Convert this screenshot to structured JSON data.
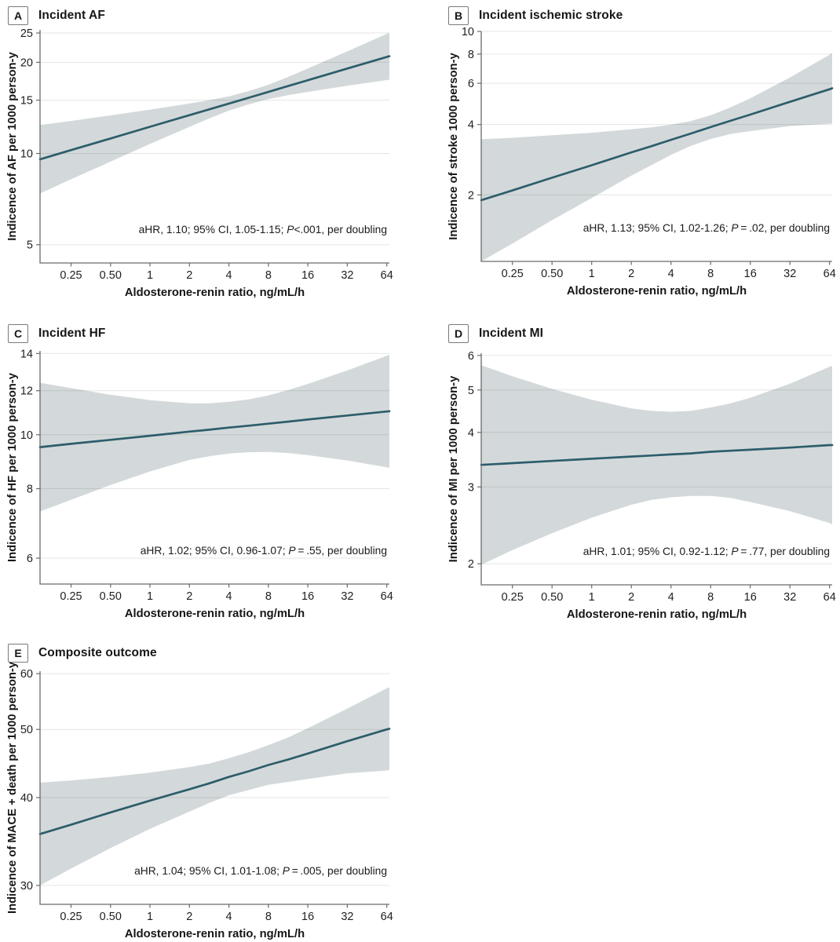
{
  "figure": {
    "background": "#ffffff",
    "colors": {
      "trend_line": "#2d5d6b",
      "ci_band": "#d3d9da",
      "gridline": "rgba(0,0,0,0.10)",
      "axis": "#6a6a6a",
      "text": "#1f1f1f"
    }
  },
  "chart_data": [
    {
      "type": "line",
      "panel_label": "A",
      "title": "Incident AF",
      "xlabel": "Aldosterone-renin ratio, ng/mL/h",
      "ylabel": "Indicence of AF per 1000 person-y",
      "annotation": {
        "pre": "aHR, 1.10; 95% CI, 1.05-1.15; ",
        "p": "P",
        "post": "<.001, per doubling"
      },
      "xscale": "log2",
      "yscale": "log10",
      "xlim": [
        0.145,
        67
      ],
      "ylim": [
        4.35,
        25.6
      ],
      "xticks": {
        "values": [
          0.25,
          0.5,
          1,
          2,
          4,
          8,
          16,
          32,
          64
        ],
        "labels": [
          "0.25",
          "0.50",
          "1",
          "2",
          "4",
          "8",
          "16",
          "32",
          "64"
        ]
      },
      "yticks": [
        5,
        10,
        15,
        20,
        25
      ],
      "x": [
        0.145,
        0.25,
        0.5,
        1,
        2,
        2.83,
        4,
        5.66,
        8,
        11.31,
        16,
        32,
        64,
        67
      ],
      "series": [
        {
          "name": "Adjusted incidence (fitted)",
          "values": [
            9.57,
            10.26,
            11.21,
            12.25,
            13.38,
            13.99,
            14.62,
            15.28,
            15.97,
            16.7,
            17.45,
            19.07,
            20.83,
            20.95
          ]
        },
        {
          "name": "95% CI lower",
          "values": [
            7.38,
            8.22,
            9.4,
            10.75,
            12.24,
            13.05,
            13.85,
            14.52,
            15.12,
            15.58,
            15.97,
            16.73,
            17.47,
            17.52
          ]
        },
        {
          "name": "95% CI upper",
          "values": [
            12.41,
            12.8,
            13.36,
            13.96,
            14.62,
            15.0,
            15.44,
            16.07,
            16.86,
            17.9,
            19.07,
            21.74,
            24.83,
            25.06
          ]
        }
      ]
    },
    {
      "type": "line",
      "panel_label": "B",
      "title": "Incident ischemic stroke",
      "xlabel": "Aldosterone-renin ratio, ng/mL/h",
      "ylabel": "Indicence of stroke 1000 person-y",
      "annotation": {
        "pre": "aHR, 1.13; 95% CI, 1.02-1.26; ",
        "p": "P",
        "post": " = .02, per doubling"
      },
      "xscale": "log2",
      "yscale": "log10",
      "xlim": [
        0.145,
        67
      ],
      "ylim": [
        1.04,
        10.0
      ],
      "xticks": {
        "values": [
          0.25,
          0.5,
          1,
          2,
          4,
          8,
          16,
          32,
          64
        ],
        "labels": [
          "0.25",
          "0.50",
          "1",
          "2",
          "4",
          "8",
          "16",
          "32",
          "64"
        ]
      },
      "yticks": [
        2,
        4,
        6,
        8,
        10
      ],
      "x": [
        0.145,
        0.25,
        0.5,
        1,
        2,
        2.83,
        4,
        5.66,
        8,
        11.31,
        16,
        32,
        64,
        67
      ],
      "series": [
        {
          "name": "Adjusted incidence (fitted)",
          "values": [
            1.9,
            2.09,
            2.37,
            2.68,
            3.04,
            3.23,
            3.44,
            3.66,
            3.9,
            4.15,
            4.41,
            5.0,
            5.66,
            5.71
          ]
        },
        {
          "name": "95% CI lower",
          "values": [
            1.04,
            1.24,
            1.56,
            1.94,
            2.42,
            2.68,
            2.97,
            3.24,
            3.47,
            3.64,
            3.75,
            3.94,
            4.03,
            4.04
          ]
        },
        {
          "name": "95% CI upper",
          "values": [
            3.46,
            3.51,
            3.6,
            3.69,
            3.82,
            3.89,
            3.99,
            4.14,
            4.38,
            4.73,
            5.18,
            6.35,
            7.95,
            8.08
          ]
        }
      ]
    },
    {
      "type": "line",
      "panel_label": "C",
      "title": "Incident HF",
      "xlabel": "Aldosterone-renin ratio, ng/mL/h",
      "ylabel": "Indicence of HF per 1000 person-y",
      "annotation": {
        "pre": "aHR, 1.02; 95% CI, 0.96-1.07; ",
        "p": "P",
        "post": " = .55, per doubling"
      },
      "xscale": "log2",
      "yscale": "log10",
      "xlim": [
        0.145,
        67
      ],
      "ylim": [
        5.39,
        14.15
      ],
      "xticks": {
        "values": [
          0.25,
          0.5,
          1,
          2,
          4,
          8,
          16,
          32,
          64
        ],
        "labels": [
          "0.25",
          "0.50",
          "1",
          "2",
          "4",
          "8",
          "16",
          "32",
          "64"
        ]
      },
      "yticks": [
        6,
        8,
        10,
        12,
        14
      ],
      "x": [
        0.145,
        0.25,
        0.5,
        1,
        2,
        2.83,
        4,
        5.66,
        8,
        11.31,
        16,
        32,
        64,
        67
      ],
      "series": [
        {
          "name": "Adjusted incidence (fitted)",
          "values": [
            9.5,
            9.63,
            9.79,
            9.96,
            10.13,
            10.21,
            10.3,
            10.38,
            10.47,
            10.56,
            10.65,
            10.83,
            11.01,
            11.02
          ]
        },
        {
          "name": "95% CI lower",
          "values": [
            7.28,
            7.64,
            8.12,
            8.59,
            9.01,
            9.15,
            9.25,
            9.3,
            9.31,
            9.27,
            9.19,
            8.99,
            8.74,
            8.72
          ]
        },
        {
          "name": "95% CI upper",
          "values": [
            12.4,
            12.13,
            11.8,
            11.54,
            11.39,
            11.39,
            11.46,
            11.58,
            11.77,
            12.03,
            12.34,
            13.05,
            13.87,
            13.93
          ]
        }
      ]
    },
    {
      "type": "line",
      "panel_label": "D",
      "title": "Incident MI",
      "xlabel": "Aldosterone-renin ratio, ng/mL/h",
      "ylabel": "Indicence of MI per 1000 person-y",
      "annotation": {
        "pre": "aHR, 1.01; 95% CI, 0.92-1.12; ",
        "p": "P",
        "post": " = .77, per doubling"
      },
      "xscale": "log2",
      "yscale": "log10",
      "xlim": [
        0.145,
        67
      ],
      "ylim": [
        1.79,
        6.07
      ],
      "xticks": {
        "values": [
          0.25,
          0.5,
          1,
          2,
          4,
          8,
          16,
          32,
          64
        ],
        "labels": [
          "0.25",
          "0.50",
          "1",
          "2",
          "4",
          "8",
          "16",
          "32",
          "64"
        ]
      },
      "yticks": [
        2,
        3,
        4,
        5,
        6
      ],
      "x": [
        0.145,
        0.25,
        0.5,
        1,
        2,
        2.83,
        4,
        5.66,
        8,
        11.31,
        16,
        32,
        64,
        67
      ],
      "series": [
        {
          "name": "Adjusted incidence (fitted)",
          "values": [
            3.37,
            3.4,
            3.44,
            3.48,
            3.52,
            3.54,
            3.56,
            3.58,
            3.61,
            3.63,
            3.65,
            3.69,
            3.74,
            3.74
          ]
        },
        {
          "name": "95% CI lower",
          "values": [
            1.99,
            2.15,
            2.35,
            2.55,
            2.73,
            2.8,
            2.84,
            2.86,
            2.86,
            2.83,
            2.77,
            2.64,
            2.48,
            2.46
          ]
        },
        {
          "name": "95% CI upper",
          "values": [
            5.7,
            5.38,
            5.03,
            4.75,
            4.54,
            4.48,
            4.46,
            4.48,
            4.56,
            4.66,
            4.8,
            5.17,
            5.65,
            5.68
          ]
        }
      ]
    },
    {
      "type": "line",
      "panel_label": "E",
      "title": "Composite outcome",
      "xlabel": "Aldosterone-renin ratio, ng/mL/h",
      "ylabel": "Indicence of MACE + death per 1000 person-y",
      "annotation": {
        "pre": "aHR, 1.04; 95% CI, 1.01-1.08; ",
        "p": "P",
        "post": " = .005, per doubling"
      },
      "xscale": "log2",
      "yscale": "log10",
      "xlim": [
        0.145,
        67
      ],
      "ylim": [
        28.2,
        60.5
      ],
      "xticks": {
        "values": [
          0.25,
          0.5,
          1,
          2,
          4,
          8,
          16,
          32,
          64
        ],
        "labels": [
          "0.25",
          "0.50",
          "1",
          "2",
          "4",
          "8",
          "16",
          "32",
          "64"
        ]
      },
      "yticks": [
        30,
        40,
        50,
        60
      ],
      "x": [
        0.145,
        0.25,
        0.5,
        1,
        2,
        2.83,
        4,
        5.66,
        8,
        11.31,
        16,
        32,
        64,
        67
      ],
      "series": [
        {
          "name": "Adjusted incidence (fitted)",
          "values": [
            35.5,
            36.6,
            38.1,
            39.6,
            41.1,
            41.9,
            42.8,
            43.6,
            44.5,
            45.3,
            46.2,
            48.1,
            50.0,
            50.1
          ]
        },
        {
          "name": "95% CI lower",
          "values": [
            30.0,
            31.7,
            33.9,
            36.1,
            38.2,
            39.3,
            40.3,
            41.0,
            41.7,
            42.1,
            42.5,
            43.3,
            43.7,
            43.8
          ]
        },
        {
          "name": "95% CI upper",
          "values": [
            42.0,
            42.3,
            42.8,
            43.4,
            44.2,
            44.7,
            45.5,
            46.4,
            47.5,
            48.7,
            50.2,
            53.5,
            57.2,
            57.4
          ]
        }
      ]
    }
  ]
}
